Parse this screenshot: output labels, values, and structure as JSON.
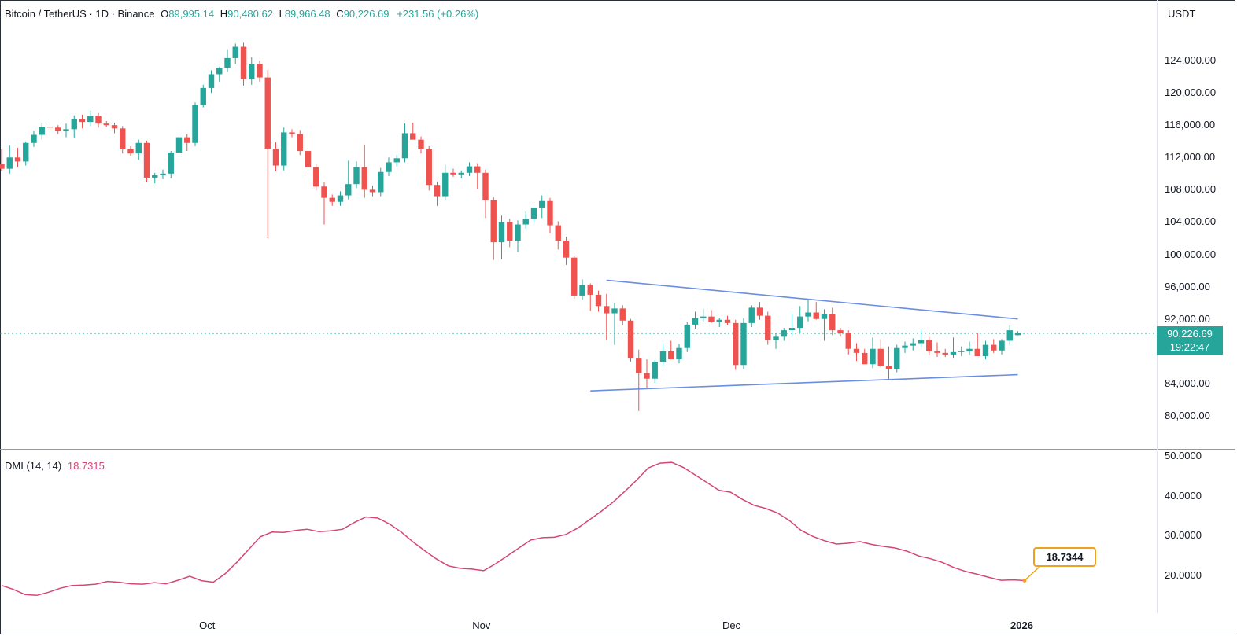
{
  "header": {
    "symbol": "Bitcoin / TetherUS · 1D · Binance",
    "open_label": "O",
    "open": "89,995.14",
    "high_label": "H",
    "high": "90,480.62",
    "low_label": "L",
    "low": "89,966.48",
    "close_label": "C",
    "close": "90,226.69",
    "change": "+231.56 (+0.26%)"
  },
  "price_axis": {
    "currency": "USDT",
    "ticks": [
      "124,000.00",
      "120,000.00",
      "116,000.00",
      "112,000.00",
      "108,000.00",
      "104,000.00",
      "100,000.00",
      "96,000.00",
      "92,000.00",
      "84,000.00",
      "80,000.00"
    ],
    "last_price": "90,226.69",
    "countdown": "19:22:47"
  },
  "x_axis": {
    "labels": [
      "Oct",
      "Nov",
      "Dec",
      "2026"
    ]
  },
  "dmi": {
    "name": "DMI (14, 14)",
    "value": "18.7315",
    "callout": "18.7344",
    "ticks": [
      "50.0000",
      "40.0000",
      "30.0000",
      "20.0000"
    ]
  },
  "colors": {
    "up": "#26a69a",
    "down": "#ef5350",
    "trendline": "#6c8ee0",
    "dmi_line": "#d4457b",
    "callout_border": "#f0a020"
  },
  "chart_data": [
    {
      "type": "candlestick",
      "title": "Bitcoin / TetherUS · 1D · Binance",
      "ylabel": "USDT",
      "ylim": [
        78000,
        128000
      ],
      "x_labels": [
        "Oct",
        "Nov",
        "Dec",
        "2026"
      ],
      "grid": false,
      "candles": [
        {
          "o": 111200,
          "h": 113000,
          "l": 110300,
          "c": 110600
        },
        {
          "o": 110600,
          "h": 113500,
          "l": 110000,
          "c": 112000
        },
        {
          "o": 112000,
          "h": 113200,
          "l": 110800,
          "c": 111500
        },
        {
          "o": 111500,
          "h": 114000,
          "l": 111000,
          "c": 113800
        },
        {
          "o": 113800,
          "h": 115300,
          "l": 113300,
          "c": 114800
        },
        {
          "o": 114800,
          "h": 116300,
          "l": 114200,
          "c": 115800
        },
        {
          "o": 115800,
          "h": 116200,
          "l": 115000,
          "c": 115700
        },
        {
          "o": 115700,
          "h": 116000,
          "l": 114900,
          "c": 115300
        },
        {
          "o": 115300,
          "h": 116200,
          "l": 114500,
          "c": 115500
        },
        {
          "o": 115500,
          "h": 117200,
          "l": 114400,
          "c": 116700
        },
        {
          "o": 116700,
          "h": 117300,
          "l": 115600,
          "c": 116400
        },
        {
          "o": 116400,
          "h": 117800,
          "l": 115900,
          "c": 117100
        },
        {
          "o": 117100,
          "h": 117500,
          "l": 115700,
          "c": 116200
        },
        {
          "o": 116200,
          "h": 116500,
          "l": 115800,
          "c": 116000
        },
        {
          "o": 116000,
          "h": 116300,
          "l": 115000,
          "c": 115600
        },
        {
          "o": 115600,
          "h": 115900,
          "l": 112500,
          "c": 113000
        },
        {
          "o": 113000,
          "h": 113400,
          "l": 112200,
          "c": 112500
        },
        {
          "o": 112500,
          "h": 114200,
          "l": 111700,
          "c": 113800
        },
        {
          "o": 113800,
          "h": 114100,
          "l": 109000,
          "c": 109500
        },
        {
          "o": 109500,
          "h": 110100,
          "l": 108800,
          "c": 109800
        },
        {
          "o": 109800,
          "h": 110500,
          "l": 109300,
          "c": 110000
        },
        {
          "o": 110000,
          "h": 112800,
          "l": 109400,
          "c": 112600
        },
        {
          "o": 112600,
          "h": 114800,
          "l": 112100,
          "c": 114500
        },
        {
          "o": 114500,
          "h": 114900,
          "l": 112800,
          "c": 113800
        },
        {
          "o": 113800,
          "h": 118800,
          "l": 113400,
          "c": 118500
        },
        {
          "o": 118500,
          "h": 121000,
          "l": 118200,
          "c": 120600
        },
        {
          "o": 120600,
          "h": 122800,
          "l": 120000,
          "c": 122300
        },
        {
          "o": 122300,
          "h": 123200,
          "l": 121400,
          "c": 123100
        },
        {
          "o": 123100,
          "h": 125400,
          "l": 122600,
          "c": 124300
        },
        {
          "o": 124300,
          "h": 126100,
          "l": 123600,
          "c": 125700
        },
        {
          "o": 125700,
          "h": 126200,
          "l": 120900,
          "c": 121700
        },
        {
          "o": 121700,
          "h": 124400,
          "l": 121000,
          "c": 123600
        },
        {
          "o": 123600,
          "h": 124000,
          "l": 121400,
          "c": 121900
        },
        {
          "o": 121900,
          "h": 122800,
          "l": 102000,
          "c": 113100
        },
        {
          "o": 113100,
          "h": 113900,
          "l": 110300,
          "c": 111000
        },
        {
          "o": 111000,
          "h": 115700,
          "l": 110400,
          "c": 115100
        },
        {
          "o": 115100,
          "h": 115500,
          "l": 114500,
          "c": 114900
        },
        {
          "o": 114900,
          "h": 115400,
          "l": 112300,
          "c": 112800
        },
        {
          "o": 112800,
          "h": 113200,
          "l": 110300,
          "c": 110800
        },
        {
          "o": 110800,
          "h": 111200,
          "l": 107900,
          "c": 108400
        },
        {
          "o": 108400,
          "h": 108900,
          "l": 103700,
          "c": 107000
        },
        {
          "o": 107000,
          "h": 107400,
          "l": 106000,
          "c": 106500
        },
        {
          "o": 106500,
          "h": 107800,
          "l": 106000,
          "c": 107300
        },
        {
          "o": 107300,
          "h": 111600,
          "l": 106800,
          "c": 108700
        },
        {
          "o": 108700,
          "h": 111500,
          "l": 108200,
          "c": 110800
        },
        {
          "o": 110800,
          "h": 113600,
          "l": 107000,
          "c": 108000
        },
        {
          "o": 108000,
          "h": 108500,
          "l": 107200,
          "c": 107700
        },
        {
          "o": 107700,
          "h": 110700,
          "l": 107200,
          "c": 110200
        },
        {
          "o": 110200,
          "h": 112000,
          "l": 109700,
          "c": 111400
        },
        {
          "o": 111400,
          "h": 112300,
          "l": 110900,
          "c": 111900
        },
        {
          "o": 111900,
          "h": 116200,
          "l": 111400,
          "c": 115000
        },
        {
          "o": 115000,
          "h": 116300,
          "l": 114500,
          "c": 114200
        },
        {
          "o": 114200,
          "h": 114600,
          "l": 112500,
          "c": 113000
        },
        {
          "o": 113000,
          "h": 113400,
          "l": 107900,
          "c": 108600
        },
        {
          "o": 108600,
          "h": 109000,
          "l": 106000,
          "c": 107200
        },
        {
          "o": 107200,
          "h": 111100,
          "l": 106700,
          "c": 110100
        },
        {
          "o": 110100,
          "h": 110600,
          "l": 109600,
          "c": 109900
        },
        {
          "o": 109900,
          "h": 110400,
          "l": 109400,
          "c": 110100
        },
        {
          "o": 110100,
          "h": 111400,
          "l": 109700,
          "c": 110900
        },
        {
          "o": 110900,
          "h": 111300,
          "l": 108100,
          "c": 110100
        },
        {
          "o": 110100,
          "h": 110500,
          "l": 104500,
          "c": 106700
        },
        {
          "o": 106700,
          "h": 107100,
          "l": 99300,
          "c": 101500
        },
        {
          "o": 101500,
          "h": 104800,
          "l": 99400,
          "c": 104000
        },
        {
          "o": 104000,
          "h": 104400,
          "l": 100900,
          "c": 101700
        },
        {
          "o": 101700,
          "h": 104200,
          "l": 100300,
          "c": 103700
        },
        {
          "o": 103700,
          "h": 105300,
          "l": 103200,
          "c": 104400
        },
        {
          "o": 104400,
          "h": 105900,
          "l": 103900,
          "c": 105800
        },
        {
          "o": 105800,
          "h": 107300,
          "l": 104500,
          "c": 106600
        },
        {
          "o": 106600,
          "h": 107000,
          "l": 102600,
          "c": 103600
        },
        {
          "o": 103600,
          "h": 104100,
          "l": 100600,
          "c": 101700
        },
        {
          "o": 101700,
          "h": 102200,
          "l": 98700,
          "c": 99600
        },
        {
          "o": 99600,
          "h": 99800,
          "l": 94500,
          "c": 94900
        },
        {
          "o": 94900,
          "h": 96900,
          "l": 94400,
          "c": 96200
        },
        {
          "o": 96200,
          "h": 96400,
          "l": 93000,
          "c": 95000
        },
        {
          "o": 95000,
          "h": 95500,
          "l": 92900,
          "c": 93600
        },
        {
          "o": 93600,
          "h": 95100,
          "l": 89400,
          "c": 92700
        },
        {
          "o": 92700,
          "h": 94000,
          "l": 88800,
          "c": 93300
        },
        {
          "o": 93300,
          "h": 93700,
          "l": 91200,
          "c": 91800
        },
        {
          "o": 91800,
          "h": 92000,
          "l": 86700,
          "c": 87100
        },
        {
          "o": 87100,
          "h": 88200,
          "l": 80600,
          "c": 85300
        },
        {
          "o": 85300,
          "h": 87000,
          "l": 83500,
          "c": 84600
        },
        {
          "o": 84600,
          "h": 86900,
          "l": 84100,
          "c": 86700
        },
        {
          "o": 86700,
          "h": 89000,
          "l": 86200,
          "c": 88000
        },
        {
          "o": 88000,
          "h": 89300,
          "l": 87300,
          "c": 87000
        },
        {
          "o": 87000,
          "h": 88900,
          "l": 86500,
          "c": 88400
        },
        {
          "o": 88400,
          "h": 91600,
          "l": 87900,
          "c": 91300
        },
        {
          "o": 91300,
          "h": 92900,
          "l": 90800,
          "c": 92100
        },
        {
          "o": 92100,
          "h": 93300,
          "l": 91700,
          "c": 92300
        },
        {
          "o": 92300,
          "h": 93100,
          "l": 91500,
          "c": 91600
        },
        {
          "o": 91600,
          "h": 92100,
          "l": 91000,
          "c": 91900
        },
        {
          "o": 91900,
          "h": 92400,
          "l": 91200,
          "c": 91500
        },
        {
          "o": 91500,
          "h": 91900,
          "l": 85700,
          "c": 86300
        },
        {
          "o": 86300,
          "h": 92100,
          "l": 85800,
          "c": 91500
        },
        {
          "o": 91500,
          "h": 93700,
          "l": 91000,
          "c": 93400
        },
        {
          "o": 93400,
          "h": 94100,
          "l": 91900,
          "c": 92400
        },
        {
          "o": 92400,
          "h": 92900,
          "l": 88800,
          "c": 89400
        },
        {
          "o": 89400,
          "h": 90300,
          "l": 88300,
          "c": 89800
        },
        {
          "o": 89800,
          "h": 90900,
          "l": 89300,
          "c": 90600
        },
        {
          "o": 90600,
          "h": 92700,
          "l": 89900,
          "c": 90900
        },
        {
          "o": 90900,
          "h": 93600,
          "l": 90200,
          "c": 92300
        },
        {
          "o": 92300,
          "h": 94500,
          "l": 91700,
          "c": 92800
        },
        {
          "o": 92800,
          "h": 94100,
          "l": 91900,
          "c": 92000
        },
        {
          "o": 92000,
          "h": 93200,
          "l": 89300,
          "c": 92600
        },
        {
          "o": 92600,
          "h": 93400,
          "l": 90000,
          "c": 90600
        },
        {
          "o": 90600,
          "h": 90900,
          "l": 89800,
          "c": 90300
        },
        {
          "o": 90300,
          "h": 90600,
          "l": 87600,
          "c": 88300
        },
        {
          "o": 88300,
          "h": 89000,
          "l": 86800,
          "c": 87800
        },
        {
          "o": 87800,
          "h": 88300,
          "l": 86600,
          "c": 86400
        },
        {
          "o": 86400,
          "h": 89700,
          "l": 85900,
          "c": 88300
        },
        {
          "o": 88300,
          "h": 89500,
          "l": 86000,
          "c": 86200
        },
        {
          "o": 86200,
          "h": 88600,
          "l": 84400,
          "c": 85800
        },
        {
          "o": 85800,
          "h": 88800,
          "l": 85400,
          "c": 88400
        },
        {
          "o": 88400,
          "h": 89200,
          "l": 87800,
          "c": 88700
        },
        {
          "o": 88700,
          "h": 89600,
          "l": 88100,
          "c": 89000
        },
        {
          "o": 89000,
          "h": 90700,
          "l": 88500,
          "c": 89400
        },
        {
          "o": 89400,
          "h": 89800,
          "l": 87500,
          "c": 88000
        },
        {
          "o": 88000,
          "h": 89100,
          "l": 87300,
          "c": 87800
        },
        {
          "o": 87800,
          "h": 88300,
          "l": 87300,
          "c": 87600
        },
        {
          "o": 87600,
          "h": 89700,
          "l": 87100,
          "c": 87900
        },
        {
          "o": 87900,
          "h": 88600,
          "l": 87400,
          "c": 88000
        },
        {
          "o": 88000,
          "h": 89200,
          "l": 87600,
          "c": 88300
        },
        {
          "o": 88300,
          "h": 90300,
          "l": 87400,
          "c": 87400
        },
        {
          "o": 87400,
          "h": 89300,
          "l": 87000,
          "c": 88800
        },
        {
          "o": 88800,
          "h": 89500,
          "l": 87800,
          "c": 88100
        },
        {
          "o": 88100,
          "h": 89500,
          "l": 87600,
          "c": 89300
        },
        {
          "o": 89300,
          "h": 91200,
          "l": 88800,
          "c": 90600
        },
        {
          "o": 89995.14,
          "h": 90480.62,
          "l": 89966.48,
          "c": 90226.69
        }
      ],
      "trendlines": [
        {
          "from_index": 75,
          "from_price": 96800,
          "to_index": 126,
          "to_price": 92000
        },
        {
          "from_index": 73,
          "from_price": 83100,
          "to_index": 126,
          "to_price": 85100
        }
      ],
      "last_price_line": 90226.69
    },
    {
      "type": "line",
      "title": "DMI (14, 14)",
      "ylim": [
        14,
        52
      ],
      "ticks": [
        50,
        40,
        30,
        20
      ],
      "series": [
        {
          "name": "DMI (14, 14)",
          "values": [
            17.5,
            16.5,
            15.2,
            15.0,
            15.8,
            16.8,
            17.5,
            17.6,
            17.8,
            18.5,
            18.3,
            17.9,
            17.8,
            18.2,
            17.9,
            18.8,
            19.8,
            18.7,
            18.3,
            20.4,
            23.3,
            26.5,
            29.7,
            30.9,
            30.8,
            31.3,
            31.6,
            31.0,
            31.2,
            31.6,
            33.3,
            34.7,
            34.4,
            32.9,
            30.9,
            28.4,
            26.2,
            24.1,
            22.4,
            21.8,
            21.6,
            21.2,
            22.9,
            24.9,
            26.9,
            28.9,
            29.5,
            29.6,
            30.3,
            31.9,
            34.0,
            36.1,
            38.4,
            41.1,
            43.9,
            47.0,
            48.2,
            48.4,
            47.1,
            45.2,
            43.3,
            41.4,
            40.9,
            39.1,
            37.6,
            36.8,
            35.7,
            33.8,
            31.3,
            29.8,
            28.7,
            27.9,
            28.1,
            28.5,
            27.8,
            27.3,
            26.9,
            26.1,
            24.9,
            24.2,
            23.3,
            22.0,
            21.0,
            20.3,
            19.5,
            18.8,
            18.9,
            18.7344
          ]
        }
      ]
    }
  ]
}
